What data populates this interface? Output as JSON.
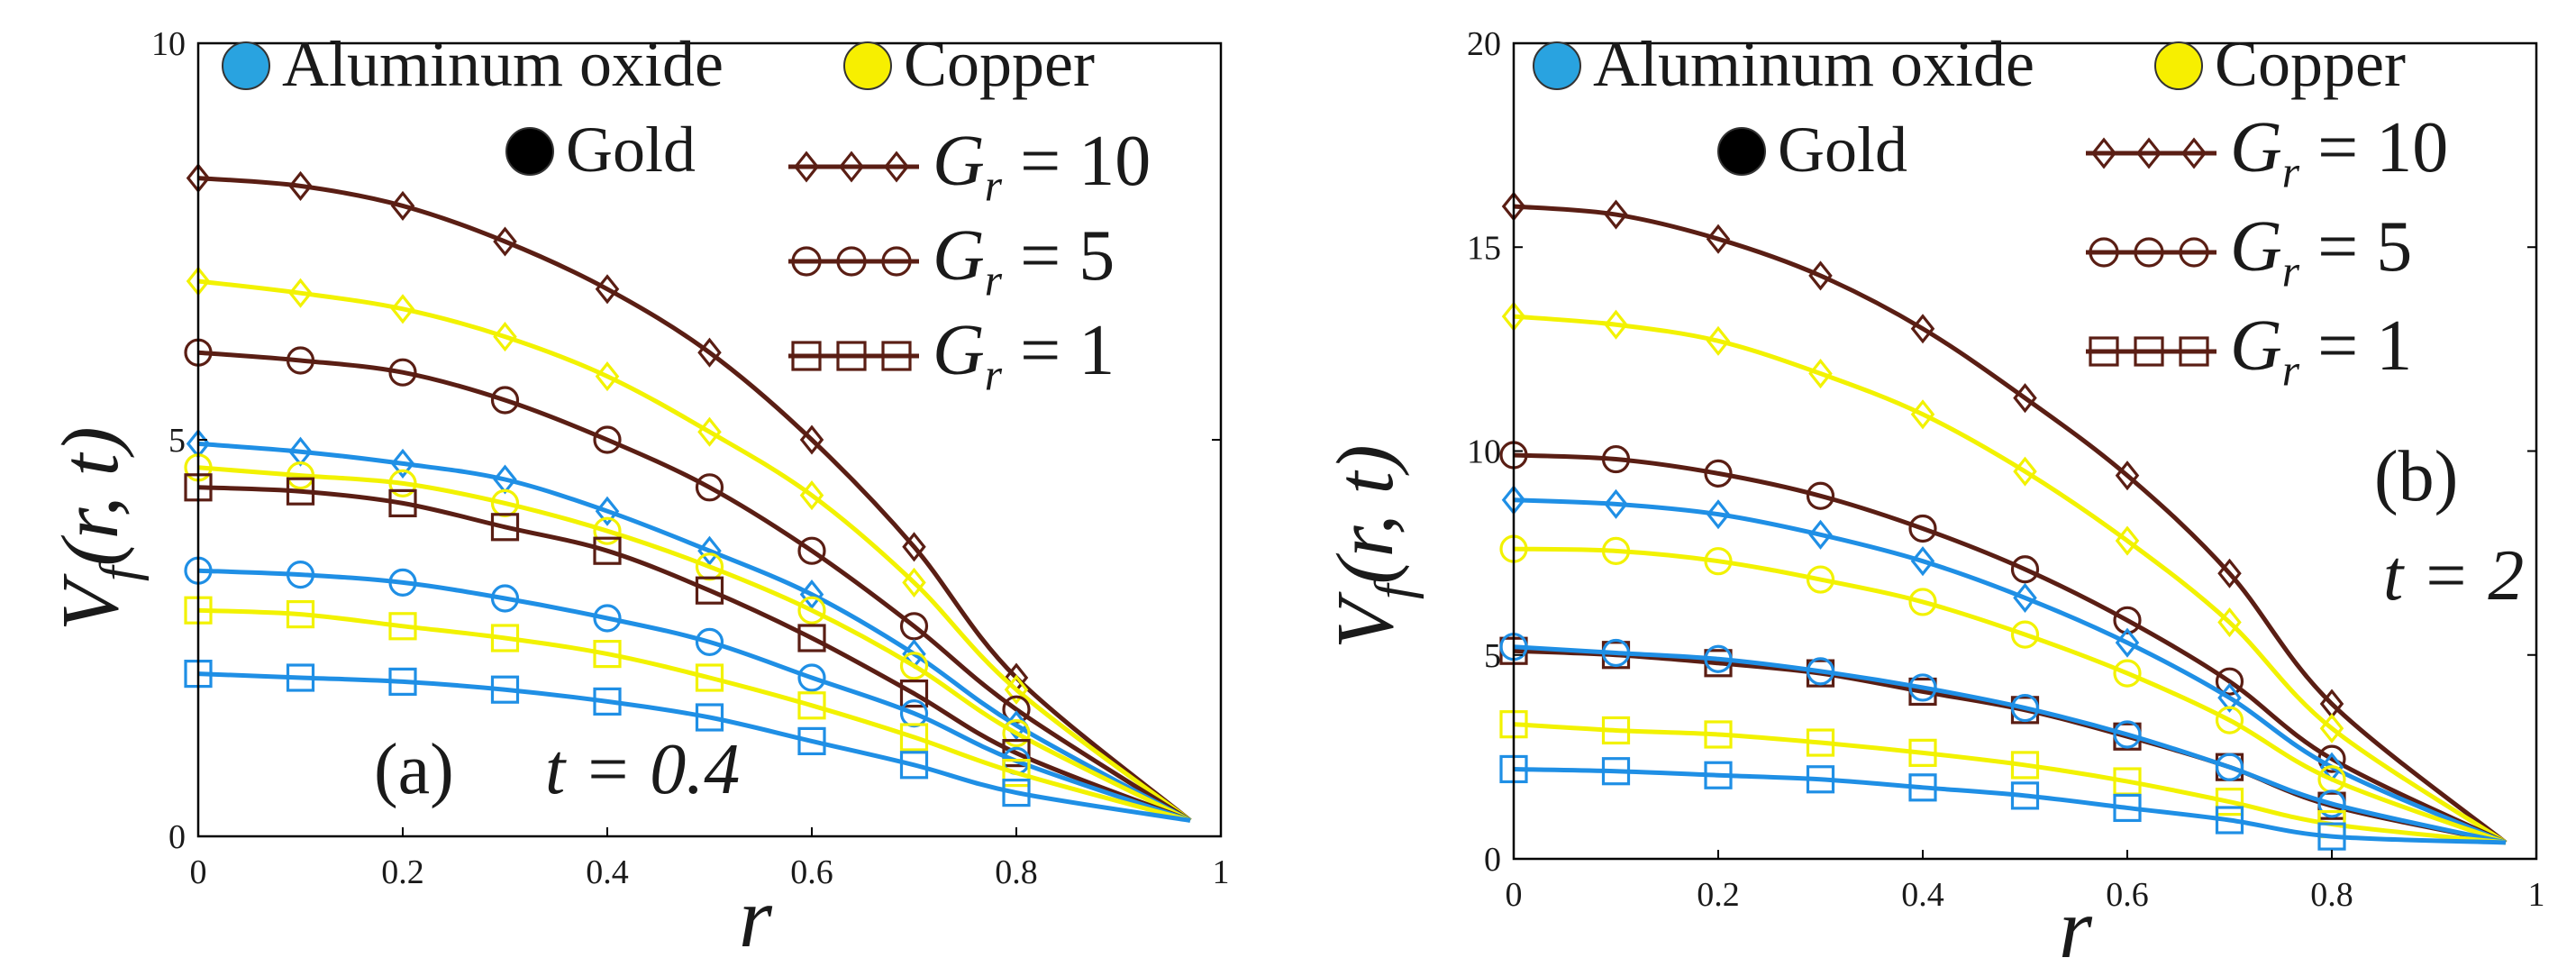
{
  "chart_data": [
    {
      "type": "line",
      "panel_label": "(a)",
      "time_label": "t = 0.4",
      "xlabel": "r",
      "ylabel": "V_f(r, t)",
      "xlim": [
        0,
        1
      ],
      "ylim": [
        0,
        10
      ],
      "x_ticks": [
        "0",
        "0.2",
        "0.4",
        "0.6",
        "0.8",
        "1"
      ],
      "y_ticks": [
        "0",
        "5",
        "10"
      ],
      "legend": {
        "materials": [
          "Aluminum oxide",
          "Copper",
          "Gold"
        ],
        "groups": [
          {
            "symbol": "diamond",
            "text": "G_r = 10"
          },
          {
            "symbol": "circle",
            "text": "G_r = 5"
          },
          {
            "symbol": "square",
            "text": "G_r = 1"
          }
        ]
      },
      "x": [
        0,
        0.1,
        0.2,
        0.3,
        0.4,
        0.5,
        0.6,
        0.7,
        0.8,
        0.97
      ],
      "series": [
        {
          "name": "Gold",
          "group": "G_r = 10",
          "material": "gold",
          "marker": "diamond",
          "values": [
            8.3,
            8.2,
            7.95,
            7.5,
            6.9,
            6.1,
            5.0,
            3.65,
            2.0,
            0.2
          ]
        },
        {
          "name": "Copper",
          "group": "G_r = 10",
          "material": "copper",
          "marker": "diamond",
          "values": [
            7.0,
            6.85,
            6.65,
            6.3,
            5.8,
            5.1,
            4.3,
            3.2,
            1.85,
            0.2
          ]
        },
        {
          "name": "Gold",
          "group": "G_r = 5",
          "material": "gold",
          "marker": "circle",
          "values": [
            6.1,
            6.0,
            5.85,
            5.5,
            5.0,
            4.4,
            3.6,
            2.65,
            1.6,
            0.2
          ]
        },
        {
          "name": "Aluminum oxide",
          "group": "G_r = 10",
          "material": "alumina",
          "marker": "diamond",
          "values": [
            4.95,
            4.85,
            4.7,
            4.5,
            4.1,
            3.6,
            3.05,
            2.3,
            1.4,
            0.2
          ]
        },
        {
          "name": "Copper",
          "group": "G_r = 5",
          "material": "copper",
          "marker": "circle",
          "values": [
            4.65,
            4.55,
            4.45,
            4.2,
            3.85,
            3.4,
            2.85,
            2.15,
            1.3,
            0.2
          ]
        },
        {
          "name": "Gold",
          "group": "G_r = 1",
          "material": "gold",
          "marker": "square",
          "values": [
            4.4,
            4.35,
            4.2,
            3.9,
            3.6,
            3.1,
            2.5,
            1.8,
            1.05,
            0.2
          ]
        },
        {
          "name": "Aluminum oxide",
          "group": "G_r = 5",
          "material": "alumina",
          "marker": "circle",
          "values": [
            3.35,
            3.3,
            3.2,
            3.0,
            2.75,
            2.45,
            2.0,
            1.55,
            0.95,
            0.2
          ]
        },
        {
          "name": "Copper",
          "group": "G_r = 1",
          "material": "copper",
          "marker": "square",
          "values": [
            2.85,
            2.8,
            2.65,
            2.5,
            2.3,
            2.0,
            1.65,
            1.25,
            0.8,
            0.2
          ]
        },
        {
          "name": "Aluminum oxide",
          "group": "G_r = 1",
          "material": "alumina",
          "marker": "square",
          "values": [
            2.05,
            2.0,
            1.95,
            1.85,
            1.7,
            1.5,
            1.2,
            0.9,
            0.55,
            0.2
          ]
        }
      ]
    },
    {
      "type": "line",
      "panel_label": "(b)",
      "time_label": "t = 2",
      "xlabel": "r",
      "ylabel": "V_f(r, t)",
      "xlim": [
        0,
        1
      ],
      "ylim": [
        0,
        20
      ],
      "x_ticks": [
        "0",
        "0.2",
        "0.4",
        "0.6",
        "0.8",
        "1"
      ],
      "y_ticks": [
        "0",
        "5",
        "10",
        "15",
        "20"
      ],
      "legend": {
        "materials": [
          "Aluminum oxide",
          "Copper",
          "Gold"
        ],
        "groups": [
          {
            "symbol": "diamond",
            "text": "G_r = 10"
          },
          {
            "symbol": "circle",
            "text": "G_r = 5"
          },
          {
            "symbol": "square",
            "text": "G_r = 1"
          }
        ]
      },
      "x": [
        0,
        0.1,
        0.2,
        0.3,
        0.4,
        0.5,
        0.6,
        0.7,
        0.8,
        0.97
      ],
      "series": [
        {
          "name": "Gold",
          "group": "G_r = 10",
          "material": "gold",
          "marker": "diamond",
          "values": [
            16.0,
            15.8,
            15.2,
            14.3,
            13.0,
            11.3,
            9.4,
            7.0,
            3.8,
            0.4
          ]
        },
        {
          "name": "Copper",
          "group": "G_r = 10",
          "material": "copper",
          "marker": "diamond",
          "values": [
            13.3,
            13.1,
            12.7,
            11.9,
            10.9,
            9.5,
            7.8,
            5.8,
            3.2,
            0.4
          ]
        },
        {
          "name": "Gold",
          "group": "G_r = 5",
          "material": "gold",
          "marker": "circle",
          "values": [
            9.9,
            9.8,
            9.45,
            8.9,
            8.1,
            7.1,
            5.85,
            4.35,
            2.45,
            0.4
          ]
        },
        {
          "name": "Aluminum oxide",
          "group": "G_r = 10",
          "material": "alumina",
          "marker": "diamond",
          "values": [
            8.8,
            8.7,
            8.45,
            7.95,
            7.3,
            6.4,
            5.3,
            3.95,
            2.25,
            0.4
          ]
        },
        {
          "name": "Copper",
          "group": "G_r = 5",
          "material": "copper",
          "marker": "circle",
          "values": [
            7.6,
            7.55,
            7.3,
            6.85,
            6.3,
            5.5,
            4.55,
            3.4,
            1.95,
            0.4
          ]
        },
        {
          "name": "Gold",
          "group": "G_r = 1",
          "material": "gold",
          "marker": "square",
          "values": [
            5.1,
            5.0,
            4.8,
            4.55,
            4.1,
            3.65,
            3.0,
            2.25,
            1.3,
            0.4
          ]
        },
        {
          "name": "Aluminum oxide",
          "group": "G_r = 5",
          "material": "alumina",
          "marker": "circle",
          "values": [
            5.2,
            5.05,
            4.9,
            4.6,
            4.2,
            3.7,
            3.05,
            2.25,
            1.35,
            0.4
          ]
        },
        {
          "name": "Copper",
          "group": "G_r = 1",
          "material": "copper",
          "marker": "square",
          "values": [
            3.3,
            3.15,
            3.05,
            2.85,
            2.6,
            2.3,
            1.9,
            1.4,
            0.85,
            0.4
          ]
        },
        {
          "name": "Aluminum oxide",
          "group": "G_r = 1",
          "material": "alumina",
          "marker": "square",
          "values": [
            2.2,
            2.15,
            2.05,
            1.95,
            1.75,
            1.55,
            1.25,
            0.95,
            0.55,
            0.4
          ]
        }
      ]
    }
  ],
  "colors": {
    "alumina": "#1f8fe5",
    "copper": "#f2f200",
    "gold": "#5a1e14",
    "gold_legend_dot": "#000000",
    "alumina_legend_dot": "#29a3e0",
    "copper_legend_dot": "#f7ef00",
    "text": "#1a1a1a"
  }
}
